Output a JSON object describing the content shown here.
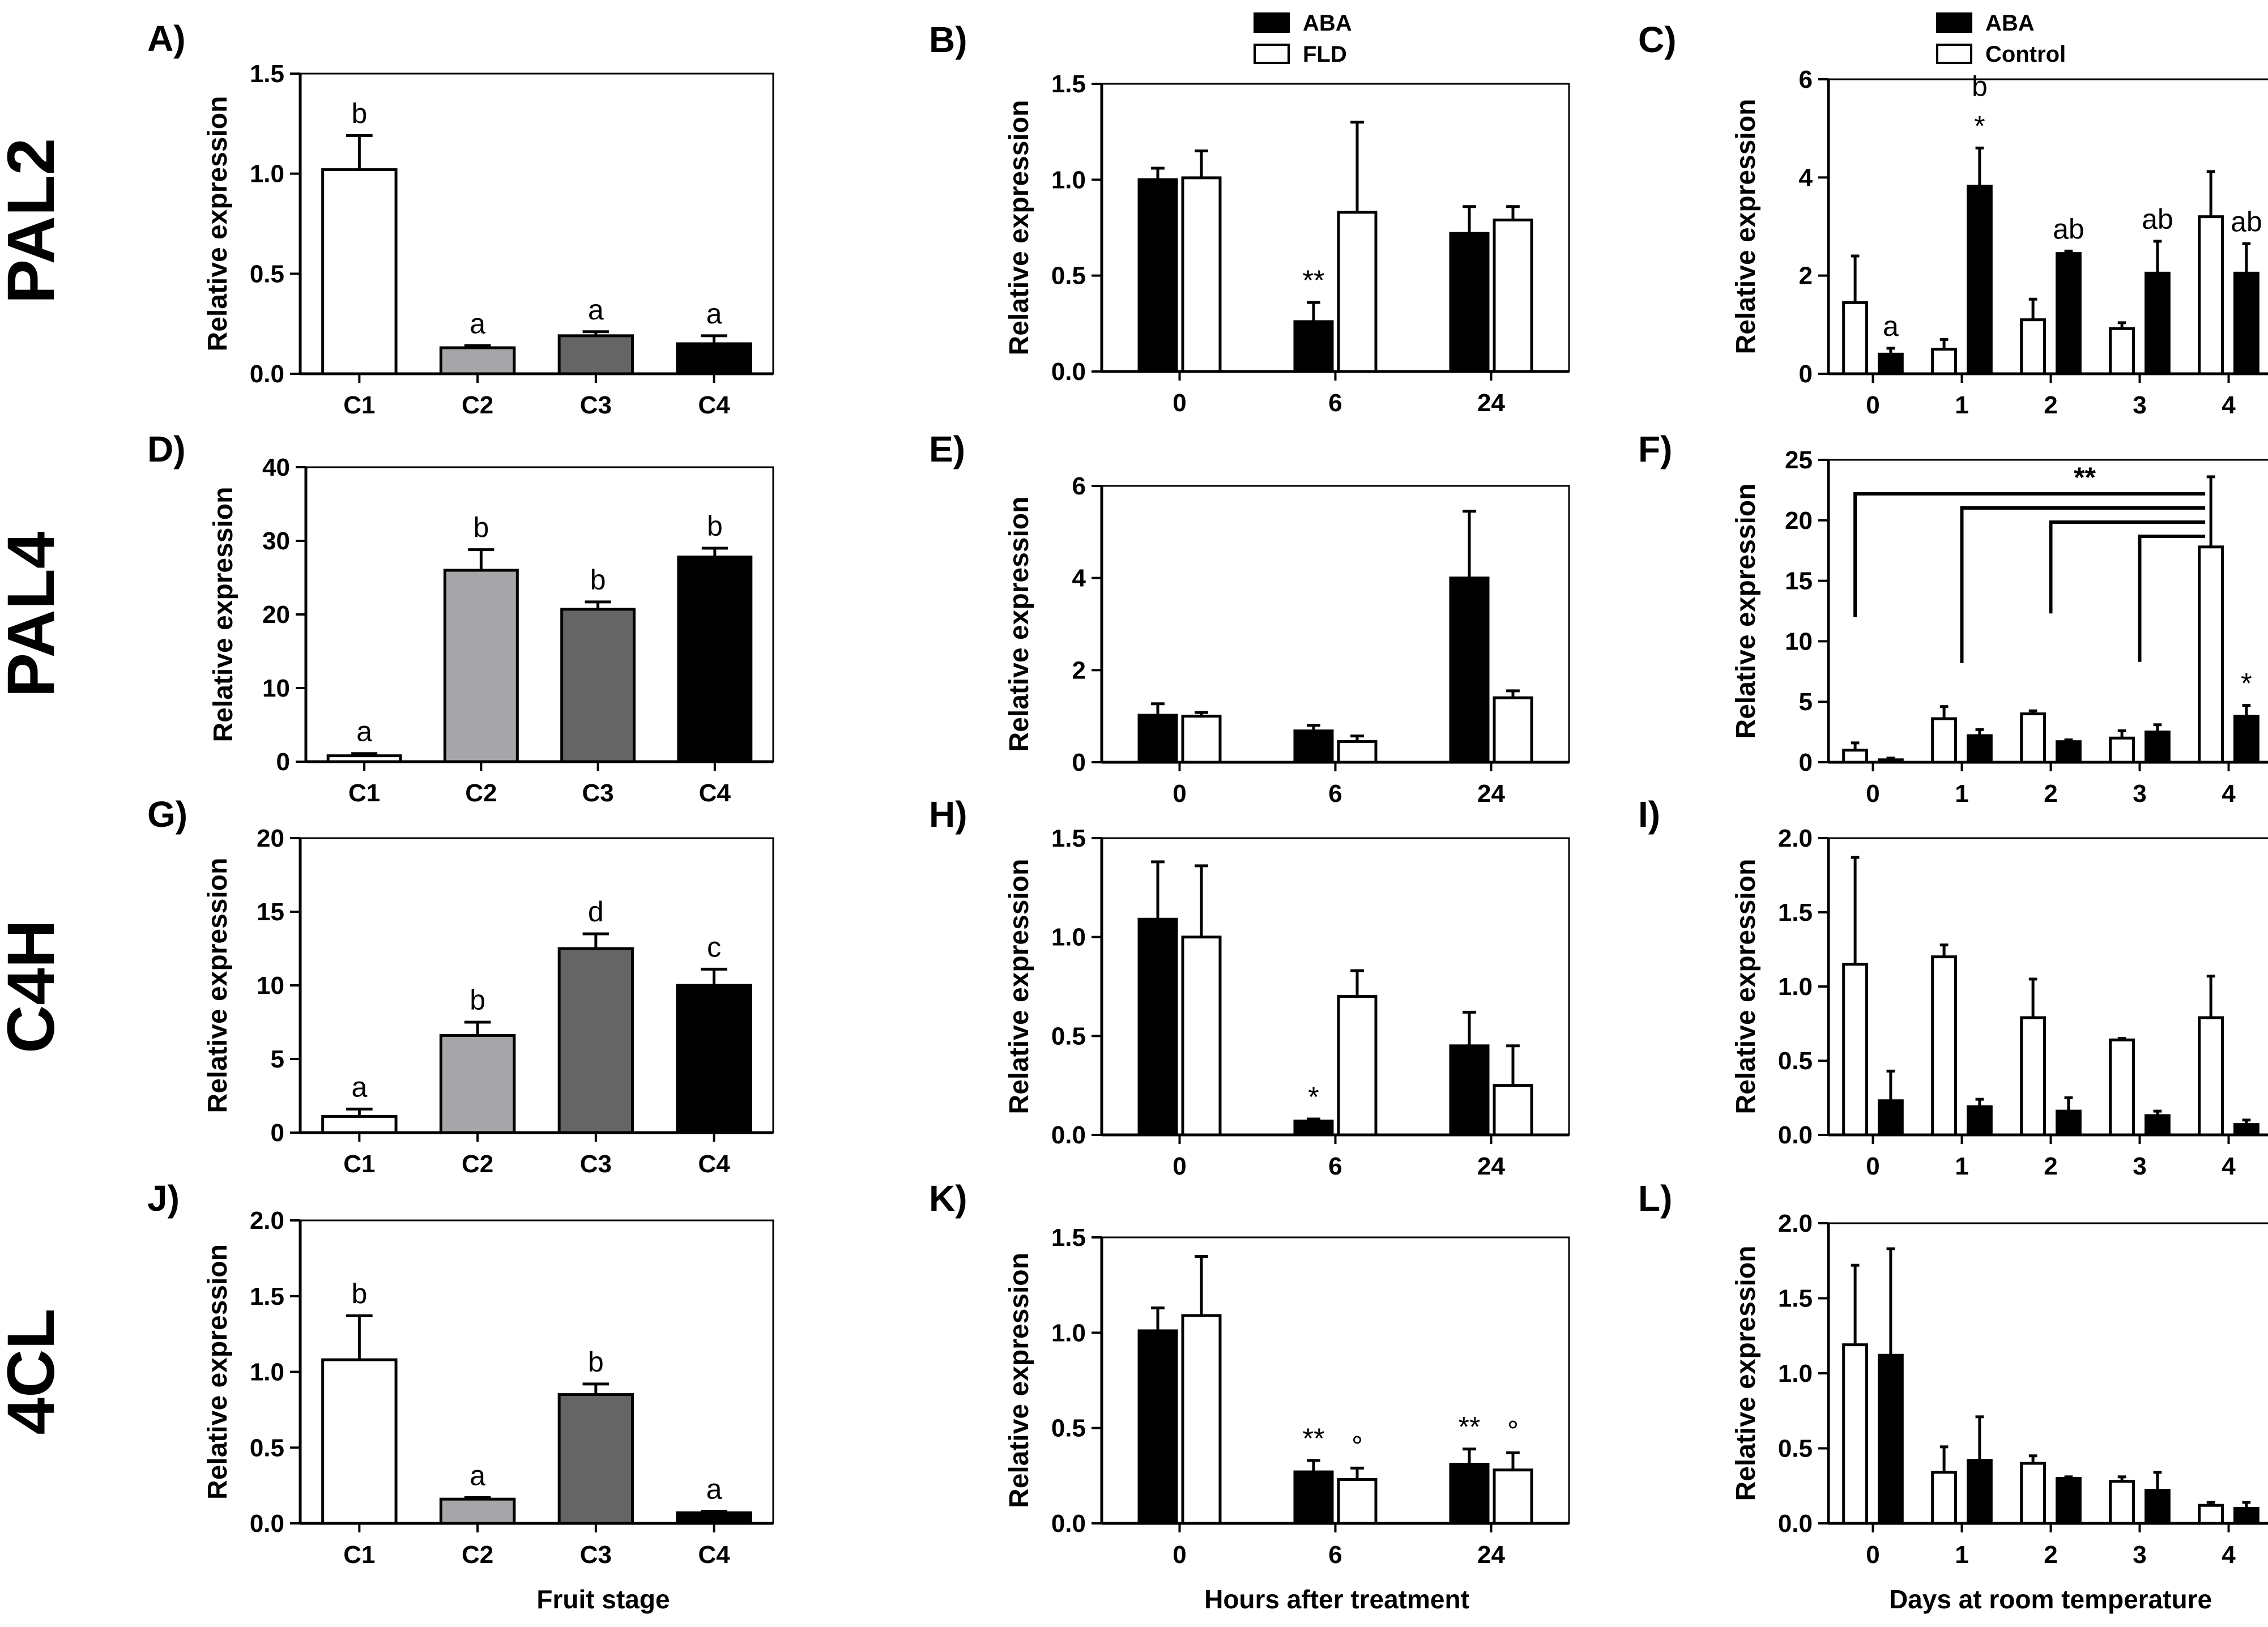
{
  "figure": {
    "genes": [
      "PAL2",
      "PAL4",
      "C4H",
      "4CL"
    ],
    "column_xlabels": [
      "Fruit stage",
      "Hours after treatment",
      "Days at room temperature"
    ]
  },
  "legends": {
    "B": [
      {
        "label": "ABA",
        "color": "#000000"
      },
      {
        "label": "FLD",
        "color": "#ffffff"
      }
    ],
    "C": [
      {
        "label": "ABA",
        "color": "#000000"
      },
      {
        "label": "Control",
        "color": "#ffffff"
      }
    ]
  },
  "colors": {
    "C1": "#ffffff",
    "C2": "#a6a6a8",
    "C3": "#656565",
    "C4": "#000000",
    "ABA": "#000000",
    "FLD": "#ffffff",
    "Control": "#ffffff"
  },
  "chart_data": [
    {
      "id": "A",
      "panel_label": "A)",
      "gene": "PAL2",
      "type": "bar",
      "title": "",
      "xlabel": "",
      "ylabel": "Relative expression",
      "categories": [
        "C1",
        "C2",
        "C3",
        "C4"
      ],
      "values": [
        1.02,
        0.13,
        0.19,
        0.15
      ],
      "errors": [
        0.17,
        0.01,
        0.02,
        0.04
      ],
      "ylim": [
        0,
        1.5
      ],
      "yticks": [
        "0.0",
        "0.5",
        "1.0",
        "1.5"
      ],
      "annotations": [
        "b",
        "a",
        "a",
        "a"
      ]
    },
    {
      "id": "B",
      "panel_label": "B)",
      "gene": "PAL2",
      "type": "bar",
      "title": "",
      "xlabel": "",
      "ylabel": "Relative expression",
      "categories": [
        "0",
        "6",
        "24"
      ],
      "series": [
        {
          "name": "ABA",
          "values": [
            1.0,
            0.26,
            0.72
          ],
          "errors": [
            0.06,
            0.1,
            0.14
          ]
        },
        {
          "name": "FLD",
          "values": [
            1.01,
            0.83,
            0.79
          ],
          "errors": [
            0.14,
            0.47,
            0.07
          ]
        }
      ],
      "ylim": [
        0,
        1.5
      ],
      "yticks": [
        "0.0",
        "0.5",
        "1.0",
        "1.5"
      ],
      "annotations": [
        {
          "category": "6",
          "series": "ABA",
          "text": "**"
        }
      ]
    },
    {
      "id": "C",
      "panel_label": "C)",
      "gene": "PAL2",
      "type": "bar",
      "title": "",
      "xlabel": "",
      "ylabel": "Relative expression",
      "categories": [
        "0",
        "1",
        "2",
        "3",
        "4"
      ],
      "series": [
        {
          "name": "Control",
          "values": [
            1.45,
            0.5,
            1.1,
            0.92,
            3.2
          ],
          "errors": [
            0.95,
            0.2,
            0.42,
            0.12,
            0.92
          ]
        },
        {
          "name": "ABA",
          "values": [
            0.4,
            3.82,
            2.45,
            2.05,
            2.05
          ],
          "errors": [
            0.12,
            0.78,
            0.05,
            0.65,
            0.6
          ]
        }
      ],
      "ylim": [
        0,
        6
      ],
      "yticks": [
        "0",
        "2",
        "4",
        "6"
      ],
      "annotations": [
        {
          "category": "0",
          "series": "ABA",
          "text": "a"
        },
        {
          "category": "1",
          "series": "ABA",
          "text": "*"
        },
        {
          "category": "1",
          "series": "ABA",
          "text": "b"
        },
        {
          "category": "2",
          "series": "ABA",
          "text": "ab"
        },
        {
          "category": "3",
          "series": "ABA",
          "text": "ab"
        },
        {
          "category": "4",
          "series": "ABA",
          "text": "ab"
        }
      ]
    },
    {
      "id": "D",
      "panel_label": "D)",
      "gene": "PAL4",
      "type": "bar",
      "title": "",
      "xlabel": "",
      "ylabel": "Relative expression",
      "categories": [
        "C1",
        "C2",
        "C3",
        "C4"
      ],
      "values": [
        0.8,
        26,
        20.7,
        27.8
      ],
      "errors": [
        0.3,
        2.8,
        1.0,
        1.2
      ],
      "ylim": [
        0,
        40
      ],
      "yticks": [
        "0",
        "10",
        "20",
        "30",
        "40"
      ],
      "annotations": [
        "a",
        "b",
        "b",
        "b"
      ]
    },
    {
      "id": "E",
      "panel_label": "E)",
      "gene": "PAL4",
      "type": "bar",
      "title": "",
      "xlabel": "",
      "ylabel": "Relative expression",
      "categories": [
        "0",
        "6",
        "24"
      ],
      "series": [
        {
          "name": "ABA",
          "values": [
            1.02,
            0.68,
            4.0
          ],
          "errors": [
            0.25,
            0.12,
            1.45
          ]
        },
        {
          "name": "FLD",
          "values": [
            1.0,
            0.45,
            1.4
          ],
          "errors": [
            0.08,
            0.12,
            0.15
          ]
        }
      ],
      "ylim": [
        0,
        6
      ],
      "yticks": [
        "0",
        "2",
        "4",
        "6"
      ],
      "annotations": []
    },
    {
      "id": "F",
      "panel_label": "F)",
      "gene": "PAL4",
      "type": "bar",
      "title": "",
      "xlabel": "",
      "ylabel": "Relative expression",
      "categories": [
        "0",
        "1",
        "2",
        "3",
        "4"
      ],
      "series": [
        {
          "name": "Control",
          "values": [
            1.0,
            3.6,
            4.0,
            2.0,
            17.8
          ],
          "errors": [
            0.6,
            1.0,
            0.25,
            0.6,
            5.8
          ]
        },
        {
          "name": "ABA",
          "values": [
            0.2,
            2.2,
            1.7,
            2.5,
            3.8
          ],
          "errors": [
            0.15,
            0.5,
            0.15,
            0.6,
            0.9
          ]
        }
      ],
      "ylim": [
        0,
        25
      ],
      "yticks": [
        "0",
        "5",
        "10",
        "15",
        "20",
        "25"
      ],
      "annotations": [
        {
          "category": "4",
          "series": "ABA",
          "text": "*"
        },
        {
          "text": "**",
          "type": "bracket",
          "from": [
            "0",
            "1",
            "2",
            "3"
          ],
          "to": "4"
        }
      ]
    },
    {
      "id": "G",
      "panel_label": "G)",
      "gene": "C4H",
      "type": "bar",
      "title": "",
      "xlabel": "",
      "ylabel": "Relative expression",
      "categories": [
        "C1",
        "C2",
        "C3",
        "C4"
      ],
      "values": [
        1.1,
        6.6,
        12.5,
        10.0
      ],
      "errors": [
        0.5,
        0.9,
        1.0,
        1.1
      ],
      "ylim": [
        0,
        20
      ],
      "yticks": [
        "0",
        "5",
        "10",
        "15",
        "20"
      ],
      "annotations": [
        "a",
        "b",
        "d",
        "c"
      ]
    },
    {
      "id": "H",
      "panel_label": "H)",
      "gene": "C4H",
      "type": "bar",
      "title": "",
      "xlabel": "",
      "ylabel": "Relative expression",
      "categories": [
        "0",
        "6",
        "24"
      ],
      "series": [
        {
          "name": "ABA",
          "values": [
            1.09,
            0.07,
            0.45
          ],
          "errors": [
            0.29,
            0.01,
            0.17
          ]
        },
        {
          "name": "FLD",
          "values": [
            1.0,
            0.7,
            0.25
          ],
          "errors": [
            0.36,
            0.13,
            0.2
          ]
        }
      ],
      "ylim": [
        0,
        1.5
      ],
      "yticks": [
        "0.0",
        "0.5",
        "1.0",
        "1.5"
      ],
      "annotations": [
        {
          "category": "6",
          "series": "ABA",
          "text": "*"
        }
      ]
    },
    {
      "id": "I",
      "panel_label": "I)",
      "gene": "C4H",
      "type": "bar",
      "title": "",
      "xlabel": "",
      "ylabel": "Relative expression",
      "categories": [
        "0",
        "1",
        "2",
        "3",
        "4"
      ],
      "series": [
        {
          "name": "Control",
          "values": [
            1.15,
            1.2,
            0.79,
            0.64,
            0.79
          ],
          "errors": [
            0.72,
            0.08,
            0.26,
            0.01,
            0.28
          ]
        },
        {
          "name": "ABA",
          "values": [
            0.23,
            0.19,
            0.16,
            0.13,
            0.07
          ],
          "errors": [
            0.2,
            0.05,
            0.09,
            0.03,
            0.03
          ]
        }
      ],
      "ylim": [
        0,
        2.0
      ],
      "yticks": [
        "0.0",
        "0.5",
        "1.0",
        "1.5",
        "2.0"
      ],
      "annotations": []
    },
    {
      "id": "J",
      "panel_label": "J)",
      "gene": "4CL",
      "type": "bar",
      "title": "",
      "xlabel": "Fruit stage",
      "ylabel": "Relative expression",
      "categories": [
        "C1",
        "C2",
        "C3",
        "C4"
      ],
      "values": [
        1.08,
        0.16,
        0.85,
        0.07
      ],
      "errors": [
        0.29,
        0.01,
        0.07,
        0.01
      ],
      "ylim": [
        0,
        2.0
      ],
      "yticks": [
        "0.0",
        "0.5",
        "1.0",
        "1.5",
        "2.0"
      ],
      "annotations": [
        "b",
        "a",
        "b",
        "a"
      ]
    },
    {
      "id": "K",
      "panel_label": "K)",
      "gene": "4CL",
      "type": "bar",
      "title": "",
      "xlabel": "Hours after treatment",
      "ylabel": "Relative expression",
      "categories": [
        "0",
        "6",
        "24"
      ],
      "series": [
        {
          "name": "ABA",
          "values": [
            1.01,
            0.27,
            0.31
          ],
          "errors": [
            0.12,
            0.06,
            0.08
          ]
        },
        {
          "name": "FLD",
          "values": [
            1.09,
            0.23,
            0.28
          ],
          "errors": [
            0.31,
            0.06,
            0.09
          ]
        }
      ],
      "ylim": [
        0,
        1.5
      ],
      "yticks": [
        "0.0",
        "0.5",
        "1.0",
        "1.5"
      ],
      "annotations": [
        {
          "category": "6",
          "series": "ABA",
          "text": "**"
        },
        {
          "category": "6",
          "series": "FLD",
          "text": "°"
        },
        {
          "category": "24",
          "series": "ABA",
          "text": "**"
        },
        {
          "category": "24",
          "series": "FLD",
          "text": "°"
        }
      ]
    },
    {
      "id": "L",
      "panel_label": "L)",
      "gene": "4CL",
      "type": "bar",
      "title": "",
      "xlabel": "Days at room temperature",
      "ylabel": "Relative expression",
      "categories": [
        "0",
        "1",
        "2",
        "3",
        "4"
      ],
      "series": [
        {
          "name": "Control",
          "values": [
            1.19,
            0.34,
            0.4,
            0.28,
            0.12
          ],
          "errors": [
            0.53,
            0.17,
            0.05,
            0.03,
            0.02
          ]
        },
        {
          "name": "ABA",
          "values": [
            1.12,
            0.42,
            0.3,
            0.22,
            0.1
          ],
          "errors": [
            0.71,
            0.29,
            0.01,
            0.12,
            0.04
          ]
        }
      ],
      "ylim": [
        0,
        2.0
      ],
      "yticks": [
        "0.0",
        "0.5",
        "1.0",
        "1.5",
        "2.0"
      ],
      "annotations": []
    }
  ]
}
